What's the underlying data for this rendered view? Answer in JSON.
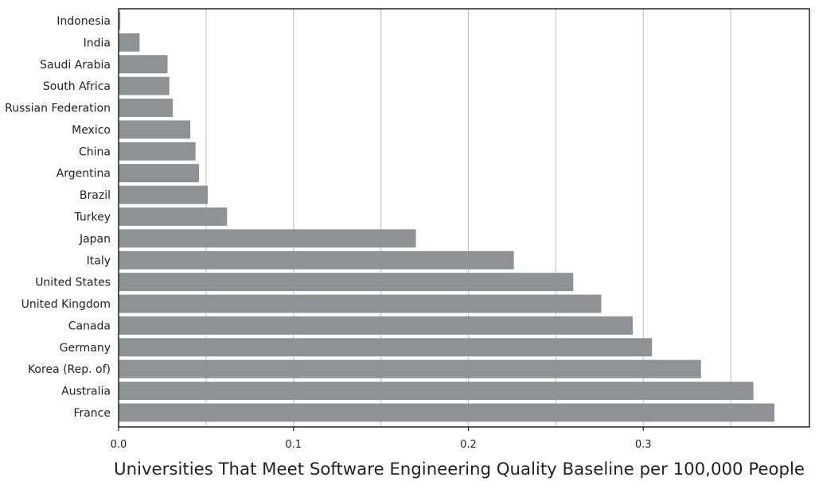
{
  "chart_data": {
    "type": "bar",
    "orientation": "horizontal",
    "categories": [
      "Indonesia",
      "India",
      "Saudi Arabia",
      "South Africa",
      "Russian Federation",
      "Mexico",
      "China",
      "Argentina",
      "Brazil",
      "Turkey",
      "Japan",
      "Italy",
      "United States",
      "United Kingdom",
      "Canada",
      "Germany",
      "Korea (Rep. of)",
      "Australia",
      "France"
    ],
    "values": [
      0.001,
      0.012,
      0.028,
      0.029,
      0.031,
      0.041,
      0.044,
      0.046,
      0.051,
      0.062,
      0.17,
      0.226,
      0.26,
      0.276,
      0.294,
      0.305,
      0.333,
      0.363,
      0.375
    ],
    "xlabel": "Universities That Meet Software Engineering Quality Baseline per 100,000 People",
    "ylabel": "",
    "title": "",
    "xlim": [
      0,
      0.395
    ],
    "xticks": [
      "0.0",
      "0.1",
      "0.2",
      "0.3"
    ],
    "grid": true,
    "bar_color": "#8f9194",
    "grid_color": "#c4c6c8"
  }
}
